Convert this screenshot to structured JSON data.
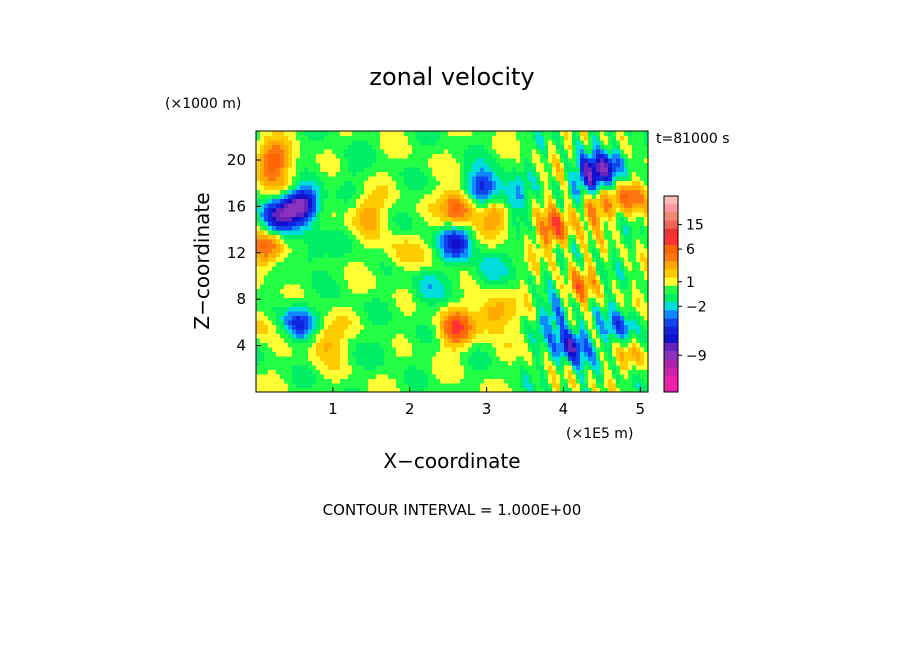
{
  "chart_data": {
    "type": "heatmap",
    "title": "zonal velocity",
    "xlabel": "X−coordinate",
    "ylabel": "Z−coordinate",
    "x_unit": "(×1E5 m)",
    "y_unit": "(×1000 m)",
    "time_label": "t=81000 s",
    "footer": "CONTOUR INTERVAL = 1.000E+00",
    "xlim": [
      0,
      5.1
    ],
    "ylim": [
      0,
      22.5
    ],
    "x_ticks": [
      {
        "v": 1,
        "t": "1"
      },
      {
        "v": 2,
        "t": "2"
      },
      {
        "v": 3,
        "t": "3"
      },
      {
        "v": 4,
        "t": "4"
      },
      {
        "v": 5,
        "t": "5"
      }
    ],
    "y_ticks": [
      {
        "v": 4,
        "t": "4"
      },
      {
        "v": 8,
        "t": "8"
      },
      {
        "v": 12,
        "t": "12"
      },
      {
        "v": 16,
        "t": "16"
      },
      {
        "v": 20,
        "t": "20"
      }
    ],
    "colorbar": {
      "levels": [
        {
          "v": -12,
          "c": "#ee22aa"
        },
        {
          "v": -11,
          "c": "#ee22aa"
        },
        {
          "v": -10,
          "c": "#cc22aa"
        },
        {
          "v": -9,
          "c": "#aa22aa"
        },
        {
          "v": -8,
          "c": "#8833bb"
        },
        {
          "v": -7,
          "c": "#6622bb"
        },
        {
          "v": -6,
          "c": "#1111cc"
        },
        {
          "v": -5,
          "c": "#1122dd"
        },
        {
          "v": -4,
          "c": "#1144ee"
        },
        {
          "v": -3,
          "c": "#1188ff"
        },
        {
          "v": -2,
          "c": "#00dddd"
        },
        {
          "v": -1,
          "c": "#00ee66"
        },
        {
          "v": 0,
          "c": "#22ff44"
        },
        {
          "v": 1,
          "c": "#ffff33"
        },
        {
          "v": 2,
          "c": "#ffcc00"
        },
        {
          "v": 3,
          "c": "#ffaa00"
        },
        {
          "v": 4,
          "c": "#ff7711"
        },
        {
          "v": 5,
          "c": "#ff6600"
        },
        {
          "v": 6,
          "c": "#ff3333"
        },
        {
          "v": 8,
          "c": "#ee3333"
        },
        {
          "v": 10,
          "c": "#ee6655"
        },
        {
          "v": 13,
          "c": "#ee8877"
        },
        {
          "v": 15,
          "c": "#ff9999"
        },
        {
          "v": 18,
          "c": "#ffbbbb"
        }
      ],
      "labels": [
        "15",
        "6",
        "1",
        "−2",
        "−9"
      ]
    },
    "features": [
      {
        "x": 0.25,
        "z": 15.0,
        "v": -6
      },
      {
        "x": 0.5,
        "z": 16.5,
        "v": -6
      },
      {
        "x": 0.65,
        "z": 16.2,
        "v": -5
      },
      {
        "x": 0.55,
        "z": 6.0,
        "v": -5
      },
      {
        "x": 2.6,
        "z": 13.0,
        "v": -5
      },
      {
        "x": 2.95,
        "z": 17.6,
        "v": -6
      },
      {
        "x": 3.3,
        "z": 16.5,
        "v": -4
      },
      {
        "x": 4.1,
        "z": 4.0,
        "v": -6
      },
      {
        "x": 4.35,
        "z": 18.5,
        "v": -6
      },
      {
        "x": 4.6,
        "z": 19.5,
        "v": -5
      },
      {
        "x": 4.75,
        "z": 5.5,
        "v": -4
      },
      {
        "x": 3.9,
        "z": 6.5,
        "v": -3
      },
      {
        "x": 0.7,
        "z": 12.0,
        "v": -2
      },
      {
        "x": 2.2,
        "z": 9.0,
        "v": -2
      },
      {
        "x": 3.0,
        "z": 10.5,
        "v": -2
      },
      {
        "x": 1.7,
        "z": 4.0,
        "v": -1
      },
      {
        "x": 0.2,
        "z": 20.0,
        "v": 5
      },
      {
        "x": 0.45,
        "z": 17.5,
        "v": 4
      },
      {
        "x": 0.15,
        "z": 12.5,
        "v": 5
      },
      {
        "x": 1.45,
        "z": 15.5,
        "v": 3
      },
      {
        "x": 2.65,
        "z": 16.0,
        "v": 6
      },
      {
        "x": 3.15,
        "z": 15.5,
        "v": 5
      },
      {
        "x": 2.6,
        "z": 5.5,
        "v": 5
      },
      {
        "x": 3.1,
        "z": 6.8,
        "v": 4
      },
      {
        "x": 3.9,
        "z": 14.0,
        "v": 5
      },
      {
        "x": 4.4,
        "z": 16.0,
        "v": 4
      },
      {
        "x": 4.9,
        "z": 17.0,
        "v": 5
      },
      {
        "x": 4.2,
        "z": 9.0,
        "v": 3
      },
      {
        "x": 0.9,
        "z": 4.5,
        "v": 3
      },
      {
        "x": 1.9,
        "z": 12.0,
        "v": 2
      },
      {
        "x": 0.05,
        "z": 6.0,
        "v": 2
      },
      {
        "x": 4.9,
        "z": 3.5,
        "v": 2
      },
      {
        "x": 1.2,
        "z": 19.5,
        "v": -1
      }
    ]
  }
}
